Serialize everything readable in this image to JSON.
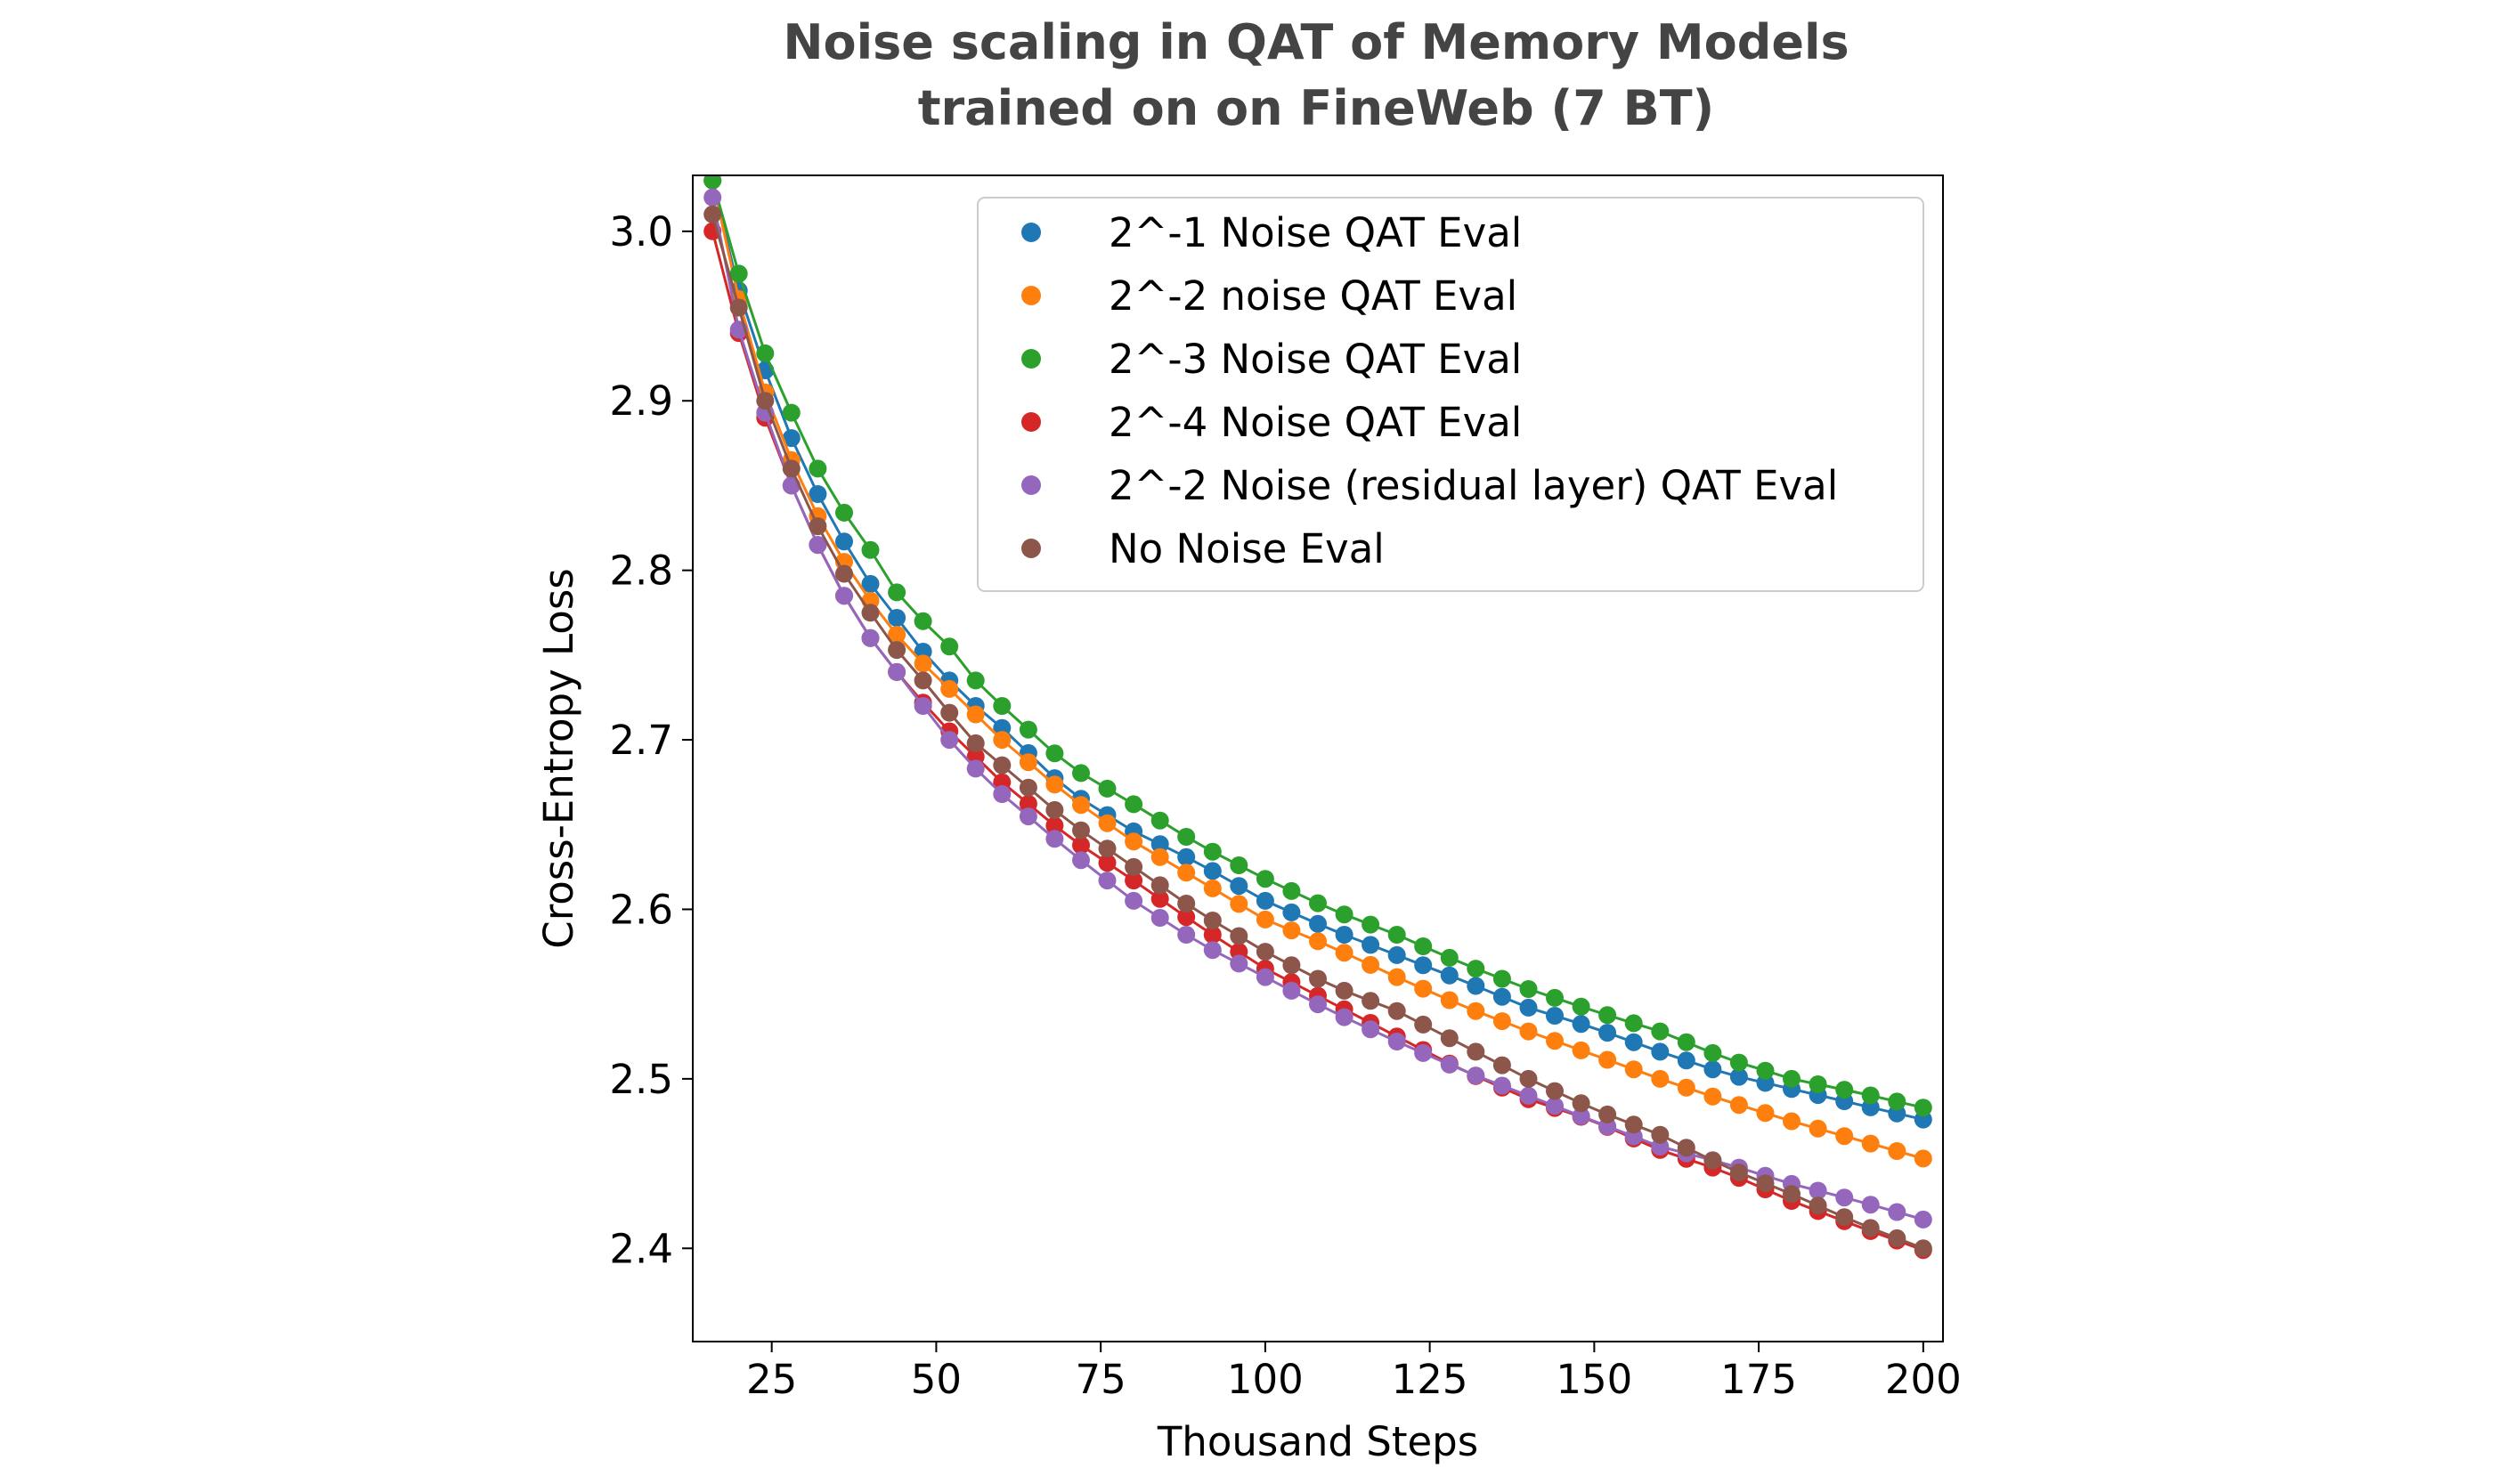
{
  "chart_data": {
    "type": "scatter",
    "title_lines": [
      "Noise scaling in QAT of Memory Models",
      "trained on on FineWeb (7 BT)"
    ],
    "xlabel": "Thousand Steps",
    "ylabel": "Cross-Entropy Loss",
    "xlim": [
      13,
      203
    ],
    "ylim": [
      2.345,
      3.033
    ],
    "xticks": [
      25,
      50,
      75,
      100,
      125,
      150,
      175,
      200
    ],
    "yticks": [
      2.4,
      2.5,
      2.6,
      2.7,
      2.8,
      2.9,
      3.0
    ],
    "ytick_labels": [
      "2.4",
      "2.5",
      "2.6",
      "2.7",
      "2.8",
      "2.9",
      "3.0"
    ],
    "legend_position": "top-right",
    "x_range": [
      16,
      200
    ],
    "x_step": 4,
    "series": [
      {
        "name": "2^-1 Noise QAT Eval",
        "color": "#1f77b4",
        "anchors": [
          [
            16,
            3.03
          ],
          [
            20,
            2.965
          ],
          [
            24,
            2.918
          ],
          [
            28,
            2.878
          ],
          [
            32,
            2.845
          ],
          [
            36,
            2.817
          ],
          [
            40,
            2.792
          ],
          [
            44,
            2.772
          ],
          [
            48,
            2.752
          ],
          [
            52,
            2.735
          ],
          [
            56,
            2.72
          ],
          [
            60,
            2.707
          ],
          [
            70,
            2.67
          ],
          [
            80,
            2.646
          ],
          [
            90,
            2.627
          ],
          [
            100,
            2.605
          ],
          [
            110,
            2.588
          ],
          [
            120,
            2.573
          ],
          [
            130,
            2.558
          ],
          [
            140,
            2.542
          ],
          [
            150,
            2.53
          ],
          [
            160,
            2.516
          ],
          [
            170,
            2.503
          ],
          [
            180,
            2.494
          ],
          [
            190,
            2.485
          ],
          [
            200,
            2.476
          ]
        ]
      },
      {
        "name": "2^-2 noise QAT Eval",
        "color": "#ff7f0e",
        "anchors": [
          [
            16,
            3.03
          ],
          [
            20,
            2.96
          ],
          [
            24,
            2.905
          ],
          [
            28,
            2.865
          ],
          [
            32,
            2.832
          ],
          [
            36,
            2.805
          ],
          [
            40,
            2.782
          ],
          [
            44,
            2.762
          ],
          [
            48,
            2.745
          ],
          [
            52,
            2.73
          ],
          [
            56,
            2.715
          ],
          [
            60,
            2.7
          ],
          [
            70,
            2.667
          ],
          [
            80,
            2.64
          ],
          [
            90,
            2.617
          ],
          [
            100,
            2.594
          ],
          [
            110,
            2.578
          ],
          [
            120,
            2.56
          ],
          [
            130,
            2.543
          ],
          [
            140,
            2.528
          ],
          [
            150,
            2.514
          ],
          [
            160,
            2.5
          ],
          [
            170,
            2.487
          ],
          [
            180,
            2.475
          ],
          [
            190,
            2.464
          ],
          [
            200,
            2.453
          ]
        ]
      },
      {
        "name": "2^-3 Noise QAT Eval",
        "color": "#2ca02c",
        "anchors": [
          [
            16,
            3.03
          ],
          [
            20,
            2.975
          ],
          [
            24,
            2.928
          ],
          [
            28,
            2.893
          ],
          [
            32,
            2.86
          ],
          [
            36,
            2.834
          ],
          [
            40,
            2.812
          ],
          [
            44,
            2.787
          ],
          [
            48,
            2.77
          ],
          [
            52,
            2.755
          ],
          [
            56,
            2.735
          ],
          [
            60,
            2.72
          ],
          [
            70,
            2.685
          ],
          [
            80,
            2.662
          ],
          [
            90,
            2.638
          ],
          [
            100,
            2.618
          ],
          [
            110,
            2.6
          ],
          [
            120,
            2.585
          ],
          [
            130,
            2.568
          ],
          [
            140,
            2.553
          ],
          [
            150,
            2.54
          ],
          [
            160,
            2.528
          ],
          [
            170,
            2.512
          ],
          [
            180,
            2.5
          ],
          [
            190,
            2.492
          ],
          [
            200,
            2.483
          ]
        ]
      },
      {
        "name": "2^-4 Noise QAT Eval",
        "color": "#d62728",
        "anchors": [
          [
            16,
            3.0
          ],
          [
            20,
            2.94
          ],
          [
            24,
            2.89
          ],
          [
            28,
            2.85
          ],
          [
            32,
            2.815
          ],
          [
            36,
            2.785
          ],
          [
            40,
            2.76
          ],
          [
            44,
            2.74
          ],
          [
            48,
            2.722
          ],
          [
            52,
            2.705
          ],
          [
            56,
            2.69
          ],
          [
            60,
            2.675
          ],
          [
            70,
            2.643
          ],
          [
            80,
            2.617
          ],
          [
            90,
            2.59
          ],
          [
            100,
            2.565
          ],
          [
            110,
            2.545
          ],
          [
            120,
            2.525
          ],
          [
            130,
            2.505
          ],
          [
            140,
            2.488
          ],
          [
            150,
            2.475
          ],
          [
            160,
            2.458
          ],
          [
            170,
            2.445
          ],
          [
            180,
            2.428
          ],
          [
            190,
            2.413
          ],
          [
            200,
            2.399
          ]
        ]
      },
      {
        "name": "2^-2 Noise (residual layer) QAT Eval",
        "color": "#9467bd",
        "anchors": [
          [
            16,
            3.02
          ],
          [
            20,
            2.942
          ],
          [
            24,
            2.893
          ],
          [
            28,
            2.85
          ],
          [
            32,
            2.815
          ],
          [
            36,
            2.785
          ],
          [
            40,
            2.76
          ],
          [
            44,
            2.74
          ],
          [
            48,
            2.72
          ],
          [
            52,
            2.7
          ],
          [
            56,
            2.683
          ],
          [
            60,
            2.668
          ],
          [
            70,
            2.635
          ],
          [
            80,
            2.605
          ],
          [
            90,
            2.58
          ],
          [
            100,
            2.56
          ],
          [
            110,
            2.54
          ],
          [
            120,
            2.522
          ],
          [
            130,
            2.505
          ],
          [
            140,
            2.49
          ],
          [
            150,
            2.475
          ],
          [
            160,
            2.46
          ],
          [
            170,
            2.45
          ],
          [
            180,
            2.438
          ],
          [
            190,
            2.428
          ],
          [
            200,
            2.417
          ]
        ]
      },
      {
        "name": "No Noise Eval",
        "color": "#8c564b",
        "anchors": [
          [
            16,
            3.01
          ],
          [
            20,
            2.955
          ],
          [
            24,
            2.9
          ],
          [
            28,
            2.86
          ],
          [
            32,
            2.826
          ],
          [
            36,
            2.798
          ],
          [
            40,
            2.775
          ],
          [
            44,
            2.753
          ],
          [
            48,
            2.735
          ],
          [
            52,
            2.716
          ],
          [
            56,
            2.698
          ],
          [
            60,
            2.685
          ],
          [
            70,
            2.652
          ],
          [
            80,
            2.625
          ],
          [
            90,
            2.598
          ],
          [
            100,
            2.575
          ],
          [
            110,
            2.555
          ],
          [
            120,
            2.54
          ],
          [
            130,
            2.52
          ],
          [
            140,
            2.5
          ],
          [
            150,
            2.482
          ],
          [
            160,
            2.467
          ],
          [
            170,
            2.448
          ],
          [
            180,
            2.432
          ],
          [
            190,
            2.415
          ],
          [
            200,
            2.4
          ]
        ]
      }
    ]
  }
}
